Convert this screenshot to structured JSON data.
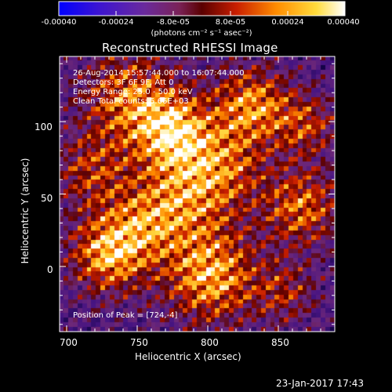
{
  "colorbar": {
    "tick_labels": [
      "-0.00040",
      "-0.00024",
      "-8.0e-05",
      "8.0e-05",
      "0.00024",
      "0.00040"
    ],
    "unit_label": "(photons cm⁻² s⁻¹ asec⁻²)",
    "min": -0.0004,
    "max": 0.0004
  },
  "plot": {
    "title": "Reconstructed RHESSI Image",
    "info_lines": [
      "26-Aug-2014 15:57:44.000 to 16:07:44.000",
      "Detectors: 3F 6F 9F, Att 0",
      "Energy Range: 25.0 - 50.0 keV",
      "Clean     Total counts: 5.66E+03"
    ],
    "peak_text": "Position of Peak = [724,-4]",
    "xlabel": "Heliocentric X (arcsec)",
    "ylabel": "Heliocentric Y (arcsec)",
    "x_ticks": [
      "700",
      "750",
      "800",
      "850"
    ],
    "y_ticks": [
      "100",
      "50",
      "0"
    ],
    "x_range": [
      695,
      890
    ],
    "y_range": [
      -45,
      145
    ]
  },
  "footer": {
    "timestamp": "23-Jan-2017 17:43"
  },
  "colors": {
    "colorbar_stops": [
      "#0000ff",
      "#3c00c8",
      "#5a1e96",
      "#781e64",
      "#6e0000",
      "#c83200",
      "#ff8c00",
      "#ffdc50",
      "#ffffff"
    ]
  }
}
